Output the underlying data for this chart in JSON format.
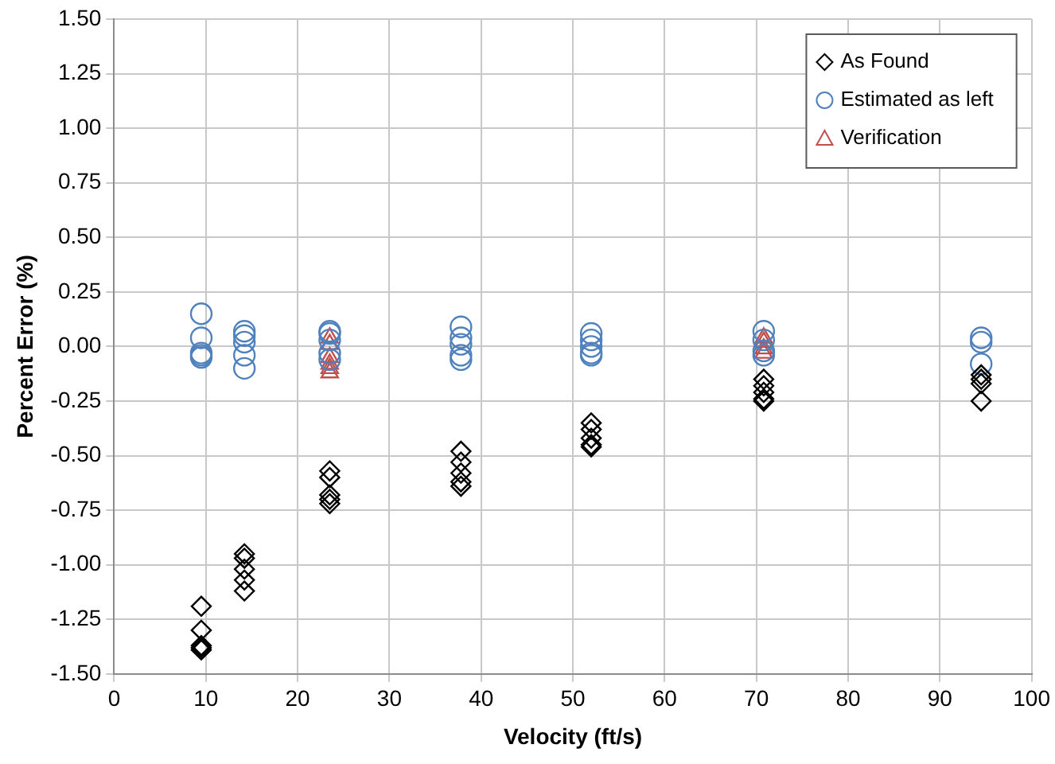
{
  "chart_data": {
    "type": "scatter",
    "xlabel": "Velocity (ft/s)",
    "ylabel": "Percent Error (%)",
    "xlim": [
      0,
      100
    ],
    "xticks": [
      0,
      10,
      20,
      30,
      40,
      50,
      60,
      70,
      80,
      90,
      100
    ],
    "ylim": [
      -1.5,
      1.5
    ],
    "yticks": [
      {
        "value": -1.5,
        "label": "-1.50"
      },
      {
        "value": -1.25,
        "label": "-1.25"
      },
      {
        "value": -1,
        "label": "-1.00"
      },
      {
        "value": -0.75,
        "label": "-0.75"
      },
      {
        "value": -0.5,
        "label": "-0.50"
      },
      {
        "value": -0.25,
        "label": "-0.25"
      },
      {
        "value": 0,
        "label": "0.00"
      },
      {
        "value": 0.25,
        "label": "0.25"
      },
      {
        "value": 0.5,
        "label": "0.50"
      },
      {
        "value": 0.75,
        "label": "0.75"
      },
      {
        "value": 1,
        "label": "1.00"
      },
      {
        "value": 1.25,
        "label": "1.25"
      },
      {
        "value": 1.5,
        "label": "1.50"
      }
    ],
    "grid": true,
    "legend": "top right",
    "series": [
      {
        "name": "As Found",
        "color": "#000000",
        "marker": "diamond",
        "x": [
          9.5,
          9.5,
          9.5,
          9.5,
          9.5,
          14.2,
          14.2,
          14.2,
          14.2,
          14.2,
          23.5,
          23.5,
          23.5,
          23.5,
          23.5,
          37.8,
          37.8,
          37.8,
          37.8,
          37.8,
          52,
          52,
          52,
          52,
          52,
          70.8,
          70.8,
          70.8,
          70.8,
          70.8,
          94.5,
          94.5,
          94.5,
          94.5
        ],
        "values": [
          -1.19,
          -1.3,
          -1.37,
          -1.38,
          -1.39,
          -0.95,
          -0.97,
          -1.02,
          -1.07,
          -1.12,
          -0.57,
          -0.6,
          -0.68,
          -0.7,
          -0.72,
          -0.48,
          -0.53,
          -0.58,
          -0.62,
          -0.64,
          -0.35,
          -0.38,
          -0.42,
          -0.45,
          -0.46,
          -0.15,
          -0.18,
          -0.21,
          -0.24,
          -0.25,
          -0.13,
          -0.15,
          -0.17,
          -0.25
        ]
      },
      {
        "name": "Estimated as left",
        "color": "#4f81bd",
        "marker": "circle",
        "x": [
          9.5,
          9.5,
          9.5,
          9.5,
          9.5,
          14.2,
          14.2,
          14.2,
          14.2,
          14.2,
          23.5,
          23.5,
          23.5,
          23.5,
          23.5,
          37.8,
          37.8,
          37.8,
          37.8,
          37.8,
          52,
          52,
          52,
          52,
          52,
          70.8,
          70.8,
          70.8,
          70.8,
          94.5,
          94.5,
          94.5
        ],
        "values": [
          0.15,
          0.04,
          -0.03,
          -0.04,
          -0.05,
          0.07,
          0.05,
          0.02,
          -0.04,
          -0.1,
          0.07,
          0.06,
          0.03,
          -0.03,
          -0.06,
          0.09,
          0.04,
          0.01,
          -0.04,
          -0.06,
          0.06,
          0.03,
          0,
          -0.03,
          -0.04,
          0.07,
          0.03,
          -0.02,
          -0.04,
          0.04,
          0.02,
          -0.08
        ]
      },
      {
        "name": "Verification",
        "color": "#c0504d",
        "marker": "triangle",
        "x": [
          23.5,
          23.5,
          23.5,
          23.5,
          23.5,
          23.5,
          70.8,
          70.8,
          70.8,
          70.8
        ],
        "values": [
          0.04,
          0.01,
          -0.05,
          -0.08,
          -0.1,
          -0.12,
          0.04,
          0.02,
          -0.01,
          -0.03
        ]
      }
    ]
  }
}
